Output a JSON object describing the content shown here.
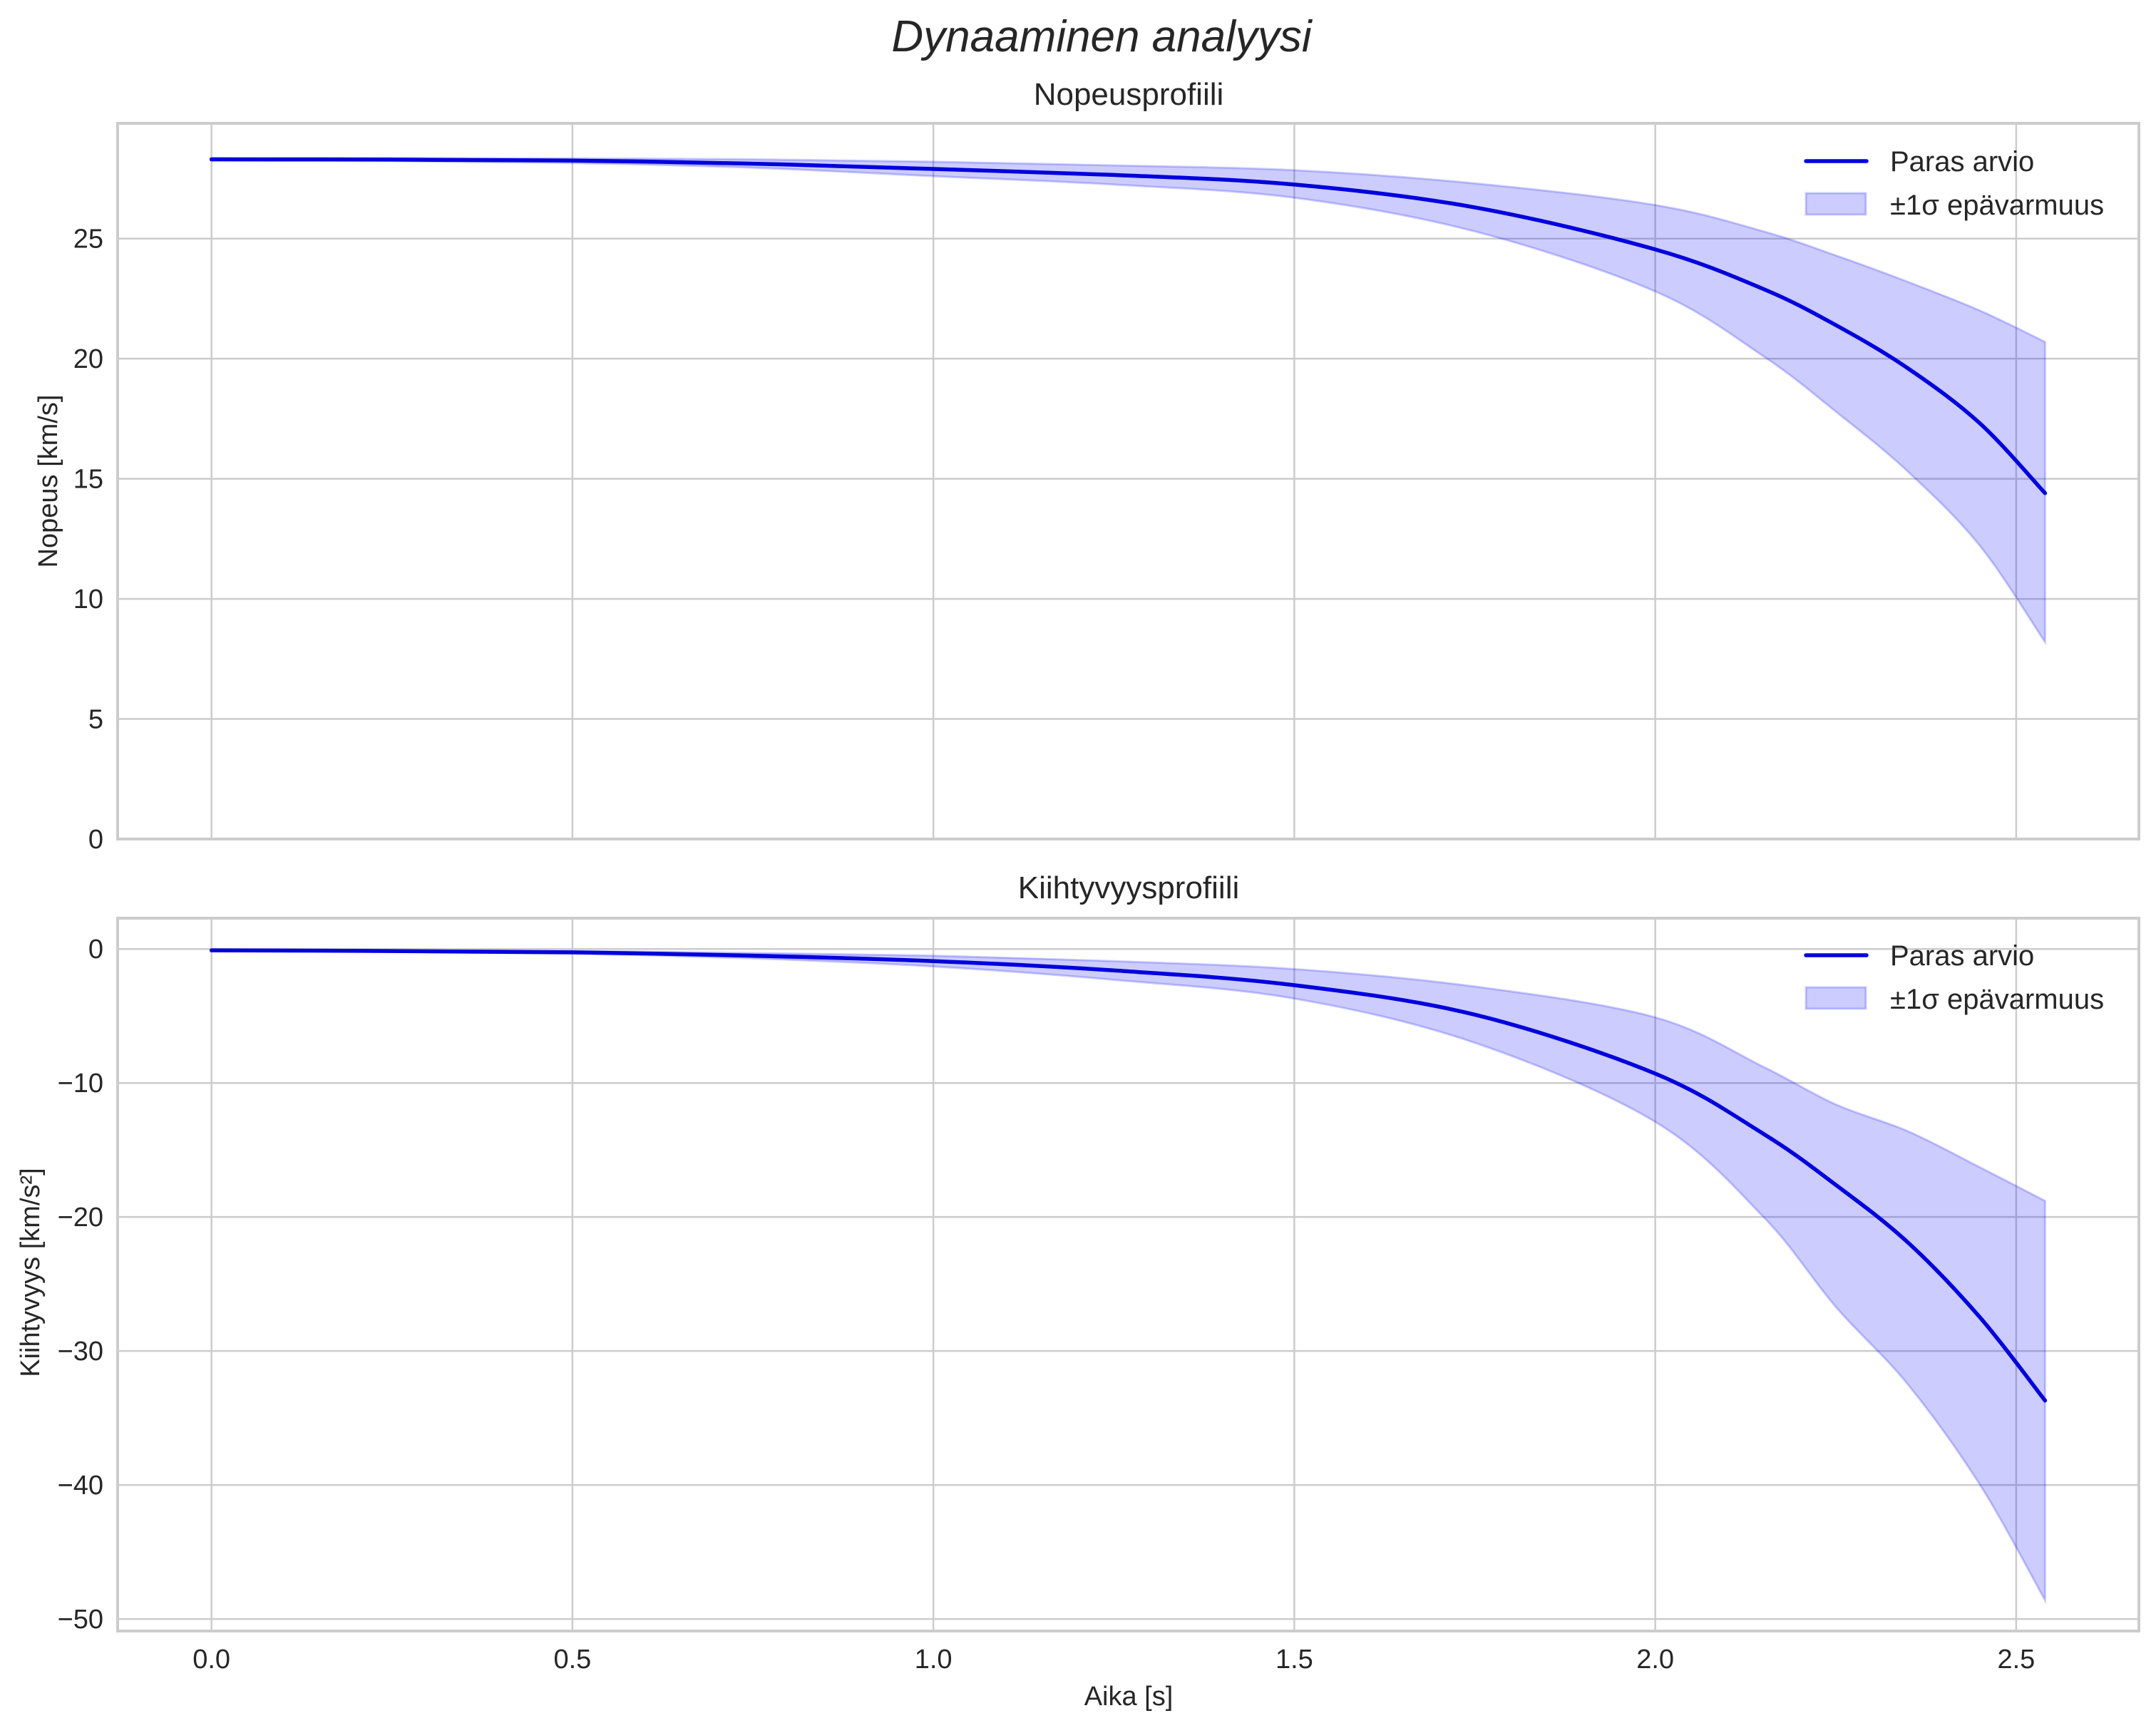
{
  "figure": {
    "title": "Dynaaminen analyysi",
    "colors": {
      "line": "#0000dd",
      "band": "#0000ff",
      "grid": "#cccccc",
      "text": "#262626"
    }
  },
  "chart_data": [
    {
      "type": "line",
      "title": "Nopeusprofiili",
      "xlabel": "",
      "ylabel": "Nopeus [km/s]",
      "xlim": [
        -0.13,
        2.67
      ],
      "ylim": [
        0,
        29.8
      ],
      "xticks": [
        0.0,
        0.5,
        1.0,
        1.5,
        2.0,
        2.5
      ],
      "xtick_labels": [
        "",
        "",
        "",
        "",
        "",
        ""
      ],
      "yticks": [
        0,
        5,
        10,
        15,
        20,
        25
      ],
      "ytick_labels": [
        "0",
        "5",
        "10",
        "15",
        "20",
        "25"
      ],
      "grid": true,
      "legend_position": "upper right",
      "legend": [
        "Paras arvio",
        "±1σ epävarmuus"
      ],
      "x": [
        0.0,
        0.25,
        0.5,
        0.75,
        1.0,
        1.25,
        1.5,
        1.75,
        2.0,
        2.15,
        2.25,
        2.35,
        2.45,
        2.54
      ],
      "series": [
        {
          "name": "Paras arvio",
          "values": [
            28.3,
            28.29,
            28.25,
            28.12,
            27.9,
            27.65,
            27.25,
            26.3,
            24.55,
            22.9,
            21.4,
            19.6,
            17.3,
            14.4
          ]
        },
        {
          "name": "±1σ epävarmuus (ylä)",
          "values": [
            28.35,
            28.35,
            28.34,
            28.3,
            28.2,
            28.05,
            27.85,
            27.3,
            26.4,
            25.3,
            24.3,
            23.2,
            22.0,
            20.7
          ]
        },
        {
          "name": "±1σ epävarmuus (ala)",
          "values": [
            28.25,
            28.23,
            28.15,
            27.95,
            27.6,
            27.25,
            26.7,
            25.3,
            22.8,
            20.1,
            17.8,
            15.3,
            12.2,
            8.2
          ]
        }
      ]
    },
    {
      "type": "line",
      "title": "Kiihtyvyysprofiili",
      "xlabel": "Aika [s]",
      "ylabel": "Kiihtyvyys [km/s²]",
      "xlim": [
        -0.13,
        2.67
      ],
      "ylim": [
        -50.9,
        2.3
      ],
      "xticks": [
        0.0,
        0.5,
        1.0,
        1.5,
        2.0,
        2.5
      ],
      "xtick_labels": [
        "0.0",
        "0.5",
        "1.0",
        "1.5",
        "2.0",
        "2.5"
      ],
      "yticks": [
        0,
        -10,
        -20,
        -30,
        -40,
        -50
      ],
      "ytick_labels": [
        "0",
        "−10",
        "−20",
        "−30",
        "−40",
        "−50"
      ],
      "grid": true,
      "legend_position": "upper right",
      "legend": [
        "Paras arvio",
        "±1σ epävarmuus"
      ],
      "x": [
        0.0,
        0.25,
        0.5,
        0.75,
        1.0,
        1.25,
        1.5,
        1.75,
        2.0,
        2.15,
        2.25,
        2.35,
        2.45,
        2.54
      ],
      "series": [
        {
          "name": "Paras arvio",
          "values": [
            -0.1,
            -0.15,
            -0.25,
            -0.5,
            -0.9,
            -1.6,
            -2.7,
            -4.9,
            -9.3,
            -13.8,
            -17.6,
            -21.9,
            -27.5,
            -33.7
          ]
        },
        {
          "name": "±1σ epävarmuus (ylä)",
          "values": [
            -0.08,
            -0.1,
            -0.15,
            -0.3,
            -0.5,
            -0.9,
            -1.5,
            -2.8,
            -5.1,
            -8.8,
            -11.6,
            -13.6,
            -16.3,
            -18.8
          ]
        },
        {
          "name": "±1σ epävarmuus (ala)",
          "values": [
            -0.12,
            -0.2,
            -0.35,
            -0.7,
            -1.3,
            -2.3,
            -3.7,
            -7.0,
            -12.9,
            -20.0,
            -26.7,
            -32.5,
            -40.0,
            -48.6
          ]
        }
      ]
    }
  ]
}
